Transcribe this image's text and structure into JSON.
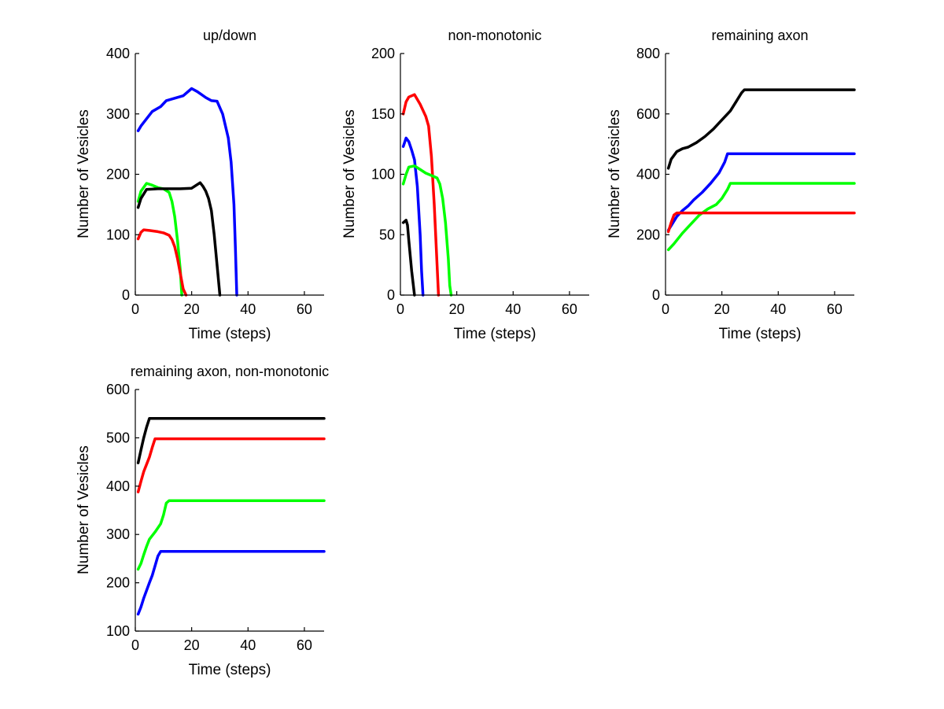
{
  "chart_data": [
    {
      "type": "line",
      "title": "up/down",
      "xlabel": "Time (steps)",
      "ylabel": "Number of Vesicles",
      "xlim": [
        0,
        67
      ],
      "ylim": [
        0,
        400
      ],
      "xticks": [
        0,
        20,
        40,
        60
      ],
      "yticks": [
        0,
        100,
        200,
        300,
        400
      ],
      "series": [
        {
          "name": "blue",
          "color": "#0000ff",
          "points": [
            [
              1,
              272
            ],
            [
              2,
              280
            ],
            [
              4,
              292
            ],
            [
              6,
              304
            ],
            [
              9,
              312
            ],
            [
              11,
              322
            ],
            [
              14,
              326
            ],
            [
              17,
              330
            ],
            [
              20,
              342
            ],
            [
              22,
              337
            ],
            [
              25,
              327
            ],
            [
              27,
              322
            ],
            [
              29,
              321
            ],
            [
              31,
              300
            ],
            [
              33,
              260
            ],
            [
              34,
              220
            ],
            [
              35,
              150
            ],
            [
              35.5,
              80
            ],
            [
              36,
              0
            ]
          ]
        },
        {
          "name": "green",
          "color": "#00ff00",
          "points": [
            [
              1,
              155
            ],
            [
              2,
              172
            ],
            [
              4,
              185
            ],
            [
              6,
              182
            ],
            [
              8,
              178
            ],
            [
              10,
              176
            ],
            [
              12,
              170
            ],
            [
              13,
              155
            ],
            [
              14,
              130
            ],
            [
              15,
              90
            ],
            [
              16,
              40
            ],
            [
              16.5,
              0
            ]
          ]
        },
        {
          "name": "black",
          "color": "#000000",
          "points": [
            [
              1,
              145
            ],
            [
              2,
              160
            ],
            [
              4,
              175
            ],
            [
              8,
              176
            ],
            [
              12,
              176
            ],
            [
              16,
              176
            ],
            [
              20,
              177
            ],
            [
              23,
              186
            ],
            [
              24,
              180
            ],
            [
              25,
              172
            ],
            [
              26,
              160
            ],
            [
              27,
              140
            ],
            [
              28,
              100
            ],
            [
              29,
              50
            ],
            [
              30,
              0
            ]
          ]
        },
        {
          "name": "red",
          "color": "#ff0000",
          "points": [
            [
              1,
              93
            ],
            [
              2,
              104
            ],
            [
              3,
              108
            ],
            [
              5,
              107
            ],
            [
              8,
              105
            ],
            [
              10,
              103
            ],
            [
              12,
              99
            ],
            [
              13,
              92
            ],
            [
              14,
              80
            ],
            [
              15,
              60
            ],
            [
              16,
              35
            ],
            [
              17,
              10
            ],
            [
              18,
              0
            ]
          ]
        }
      ]
    },
    {
      "type": "line",
      "title": "non-monotonic",
      "xlabel": "Time (steps)",
      "ylabel": "Number of Vesicles",
      "xlim": [
        0,
        67
      ],
      "ylim": [
        0,
        200
      ],
      "xticks": [
        0,
        20,
        40,
        60
      ],
      "yticks": [
        0,
        50,
        100,
        150,
        200
      ],
      "series": [
        {
          "name": "red",
          "color": "#ff0000",
          "points": [
            [
              1,
              150
            ],
            [
              2,
              160
            ],
            [
              3,
              164
            ],
            [
              5,
              166
            ],
            [
              7,
              158
            ],
            [
              9,
              148
            ],
            [
              10,
              140
            ],
            [
              11,
              115
            ],
            [
              12,
              75
            ],
            [
              13,
              25
            ],
            [
              13.5,
              0
            ]
          ]
        },
        {
          "name": "blue",
          "color": "#0000ff",
          "points": [
            [
              1,
              123
            ],
            [
              2,
              130
            ],
            [
              3,
              127
            ],
            [
              4,
              120
            ],
            [
              5,
              112
            ],
            [
              6,
              90
            ],
            [
              7,
              50
            ],
            [
              7.5,
              20
            ],
            [
              8,
              0
            ]
          ]
        },
        {
          "name": "green",
          "color": "#00ff00",
          "points": [
            [
              1,
              92
            ],
            [
              2,
              100
            ],
            [
              3,
              106
            ],
            [
              5,
              107
            ],
            [
              7,
              104
            ],
            [
              9,
              101
            ],
            [
              11,
              99
            ],
            [
              13,
              97
            ],
            [
              14,
              92
            ],
            [
              15,
              80
            ],
            [
              16,
              60
            ],
            [
              17,
              30
            ],
            [
              17.5,
              8
            ],
            [
              18,
              0
            ]
          ]
        },
        {
          "name": "black",
          "color": "#000000",
          "points": [
            [
              1,
              60
            ],
            [
              2,
              62
            ],
            [
              2.5,
              58
            ],
            [
              3,
              45
            ],
            [
              4,
              20
            ],
            [
              5,
              0
            ]
          ]
        }
      ]
    },
    {
      "type": "line",
      "title": "remaining axon",
      "xlabel": "Time (steps)",
      "ylabel": "Number of Vesicles",
      "xlim": [
        0,
        67
      ],
      "ylim": [
        0,
        800
      ],
      "xticks": [
        0,
        20,
        40,
        60
      ],
      "yticks": [
        0,
        200,
        400,
        600,
        800
      ],
      "series": [
        {
          "name": "black",
          "color": "#000000",
          "points": [
            [
              1,
              420
            ],
            [
              2,
              450
            ],
            [
              4,
              475
            ],
            [
              6,
              485
            ],
            [
              8,
              490
            ],
            [
              11,
              505
            ],
            [
              14,
              525
            ],
            [
              17,
              550
            ],
            [
              20,
              580
            ],
            [
              23,
              610
            ],
            [
              25,
              640
            ],
            [
              27,
              670
            ],
            [
              28,
              680
            ],
            [
              67,
              680
            ]
          ]
        },
        {
          "name": "blue",
          "color": "#0000ff",
          "points": [
            [
              1,
              215
            ],
            [
              2,
              230
            ],
            [
              4,
              260
            ],
            [
              6,
              280
            ],
            [
              8,
              295
            ],
            [
              10,
              315
            ],
            [
              13,
              340
            ],
            [
              16,
              370
            ],
            [
              19,
              405
            ],
            [
              21,
              440
            ],
            [
              22,
              468
            ],
            [
              67,
              468
            ]
          ]
        },
        {
          "name": "green",
          "color": "#00ff00",
          "points": [
            [
              1,
              150
            ],
            [
              3,
              170
            ],
            [
              6,
              205
            ],
            [
              9,
              235
            ],
            [
              12,
              265
            ],
            [
              15,
              285
            ],
            [
              18,
              300
            ],
            [
              20,
              320
            ],
            [
              22,
              350
            ],
            [
              23,
              370
            ],
            [
              67,
              370
            ]
          ]
        },
        {
          "name": "red",
          "color": "#ff0000",
          "points": [
            [
              1,
              210
            ],
            [
              2,
              240
            ],
            [
              3,
              265
            ],
            [
              4,
              272
            ],
            [
              67,
              272
            ]
          ]
        }
      ]
    },
    {
      "type": "line",
      "title": "remaining axon, non-monotonic",
      "xlabel": "Time (steps)",
      "ylabel": "Number of Vesicles",
      "xlim": [
        0,
        67
      ],
      "ylim": [
        100,
        600
      ],
      "xticks": [
        0,
        20,
        40,
        60
      ],
      "yticks": [
        100,
        200,
        300,
        400,
        500,
        600
      ],
      "series": [
        {
          "name": "black",
          "color": "#000000",
          "points": [
            [
              1,
              448
            ],
            [
              2,
              475
            ],
            [
              3,
              500
            ],
            [
              4,
              522
            ],
            [
              5,
              540
            ],
            [
              67,
              540
            ]
          ]
        },
        {
          "name": "red",
          "color": "#ff0000",
          "points": [
            [
              1,
              388
            ],
            [
              2,
              410
            ],
            [
              3,
              430
            ],
            [
              4,
              445
            ],
            [
              5,
              460
            ],
            [
              6,
              480
            ],
            [
              7,
              498
            ],
            [
              67,
              498
            ]
          ]
        },
        {
          "name": "green",
          "color": "#00ff00",
          "points": [
            [
              1,
              228
            ],
            [
              2,
              240
            ],
            [
              3,
              258
            ],
            [
              4,
              275
            ],
            [
              5,
              290
            ],
            [
              7,
              305
            ],
            [
              9,
              322
            ],
            [
              10,
              340
            ],
            [
              11,
              365
            ],
            [
              12,
              370
            ],
            [
              67,
              370
            ]
          ]
        },
        {
          "name": "blue",
          "color": "#0000ff",
          "points": [
            [
              1,
              135
            ],
            [
              2,
              150
            ],
            [
              3,
              168
            ],
            [
              5,
              200
            ],
            [
              6,
              215
            ],
            [
              7,
              235
            ],
            [
              8,
              255
            ],
            [
              9,
              265
            ],
            [
              67,
              265
            ]
          ]
        }
      ]
    }
  ]
}
